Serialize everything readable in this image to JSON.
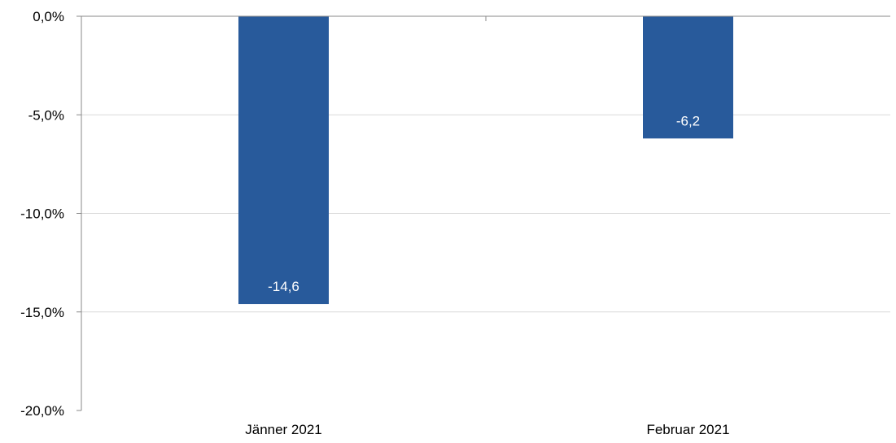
{
  "chart_data": {
    "type": "bar",
    "categories": [
      "Jänner 2021",
      "Februar 2021"
    ],
    "values": [
      -14.6,
      -6.2
    ],
    "data_labels": [
      "-14,6",
      "-6,2"
    ],
    "yticks": [
      {
        "value": 0,
        "label": "0,0%"
      },
      {
        "value": -5,
        "label": "-5,0%"
      },
      {
        "value": -10,
        "label": "-10,0%"
      },
      {
        "value": -15,
        "label": "-15,0%"
      },
      {
        "value": -20,
        "label": "-20,0%"
      }
    ],
    "ylim": [
      -20,
      0
    ],
    "title": "",
    "xlabel": "",
    "ylabel": "",
    "grid": true,
    "bar_color": "#285A9B",
    "grid_color": "#D9D9D9",
    "axis_color": "#888888"
  }
}
